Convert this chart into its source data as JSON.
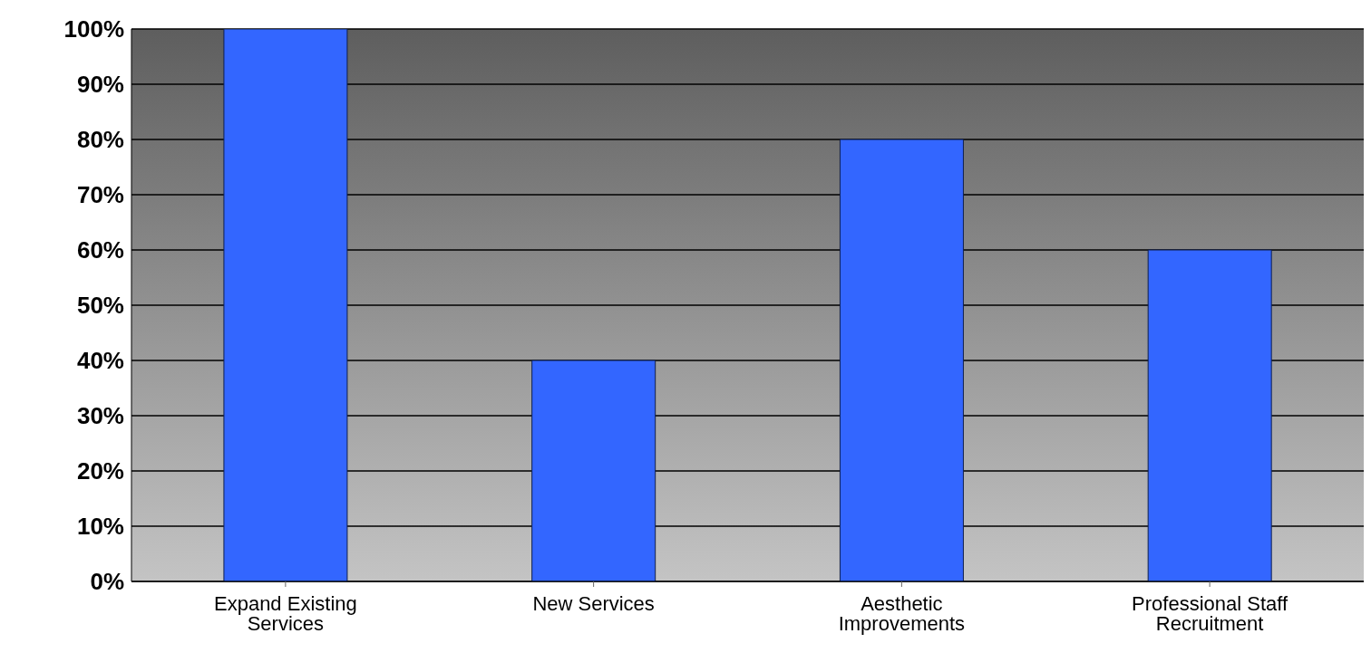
{
  "chart_data": {
    "type": "bar",
    "categories": [
      "Expand Existing Services",
      "New Services",
      "Aesthetic Improvements",
      "Professional Staff Recruitment"
    ],
    "values": [
      100,
      40,
      80,
      60
    ],
    "color": "#3366ff",
    "ylim": [
      0,
      100
    ],
    "yticks": [
      {
        "value": 0,
        "label": "0%"
      },
      {
        "value": 10,
        "label": "10%"
      },
      {
        "value": 20,
        "label": "20%"
      },
      {
        "value": 30,
        "label": "30%"
      },
      {
        "value": 40,
        "label": "40%"
      },
      {
        "value": 50,
        "label": "50%"
      },
      {
        "value": 60,
        "label": "60%"
      },
      {
        "value": 70,
        "label": "70%"
      },
      {
        "value": 80,
        "label": "80%"
      },
      {
        "value": 90,
        "label": "90%"
      },
      {
        "value": 100,
        "label": "100%"
      }
    ],
    "grid": "y",
    "legend": false
  }
}
